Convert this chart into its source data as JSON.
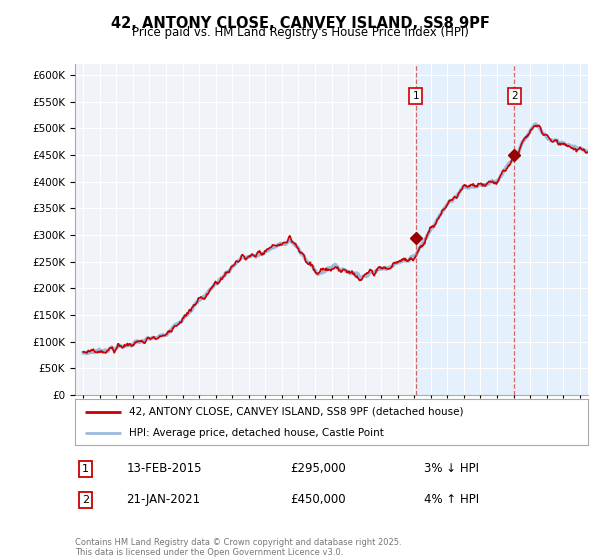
{
  "title": "42, ANTONY CLOSE, CANVEY ISLAND, SS8 9PF",
  "subtitle": "Price paid vs. HM Land Registry's House Price Index (HPI)",
  "ylim": [
    0,
    620000
  ],
  "yticks": [
    0,
    50000,
    100000,
    150000,
    200000,
    250000,
    300000,
    350000,
    400000,
    450000,
    500000,
    550000,
    600000
  ],
  "line_color_red": "#cc0000",
  "line_color_blue": "#99bbdd",
  "grid_color": "#cccccc",
  "background_color": "#ffffff",
  "purchase1": {
    "date_label": "13-FEB-2015",
    "price": 295000,
    "label": "3% ↓ HPI",
    "x_year": 2015.1
  },
  "purchase2": {
    "date_label": "21-JAN-2021",
    "price": 450000,
    "label": "4% ↑ HPI",
    "x_year": 2021.05
  },
  "legend_line1": "42, ANTONY CLOSE, CANVEY ISLAND, SS8 9PF (detached house)",
  "legend_line2": "HPI: Average price, detached house, Castle Point",
  "footnote": "Contains HM Land Registry data © Crown copyright and database right 2025.\nThis data is licensed under the Open Government Licence v3.0.",
  "xmin": 1994.5,
  "xmax": 2025.5,
  "shade_color": "#ddeeff"
}
